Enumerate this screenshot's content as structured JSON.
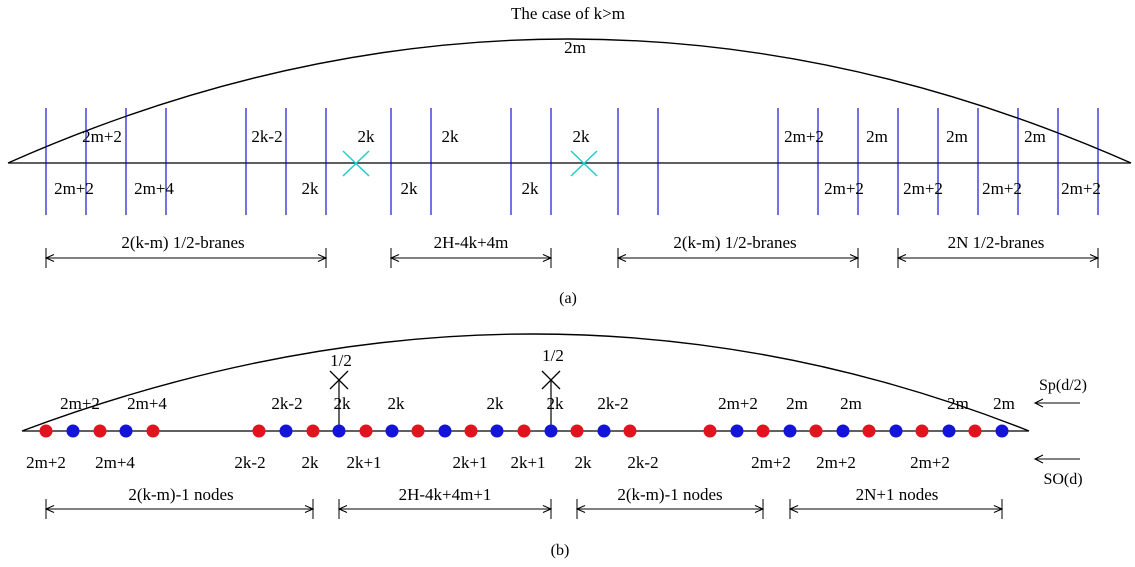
{
  "title": "The  case  of  k>m",
  "a": {
    "arc_label": "2m",
    "caption": "(a)",
    "labels_above": [
      "2m+2",
      "2k-2",
      "2k",
      "2k",
      "2k",
      "2m+2",
      "2m",
      "2m",
      "2m"
    ],
    "labels_below": [
      "2m+2",
      "2m+4",
      "2k",
      "2k",
      "2k",
      "2m+2",
      "2m+2",
      "2m+2",
      "2m+2"
    ],
    "spans": [
      "2(k-m)  1/2-branes",
      "2H-4k+4m",
      "2(k-m)  1/2-branes",
      "2N  1/2-branes"
    ]
  },
  "b": {
    "caption": "(b)",
    "half_labels": [
      "1/2",
      "1/2"
    ],
    "labels_above": [
      "2m+2",
      "2m+4",
      "2k-2",
      "2k",
      "2k",
      "2k",
      "2k",
      "2k-2",
      "2m+2",
      "2m",
      "2m",
      "2m",
      "2m"
    ],
    "labels_below": [
      "2m+2",
      "2m+4",
      "2k-2",
      "2k",
      "2k+1",
      "2k+1",
      "2k+1",
      "2k",
      "2k-2",
      "2m+2",
      "2m+2",
      "2m+2"
    ],
    "spans": [
      "2(k-m)-1  nodes",
      "2H-4k+4m+1",
      "2(k-m)-1  nodes",
      "2N+1  nodes"
    ],
    "arrow_top_label": "Sp(d/2)",
    "arrow_bottom_label": "SO(d)"
  },
  "colors": {
    "brane": "#0000cc",
    "cross": "#22cccc",
    "node_red": "#e0141e",
    "node_blue": "#1414d8",
    "ink": "#000000"
  }
}
